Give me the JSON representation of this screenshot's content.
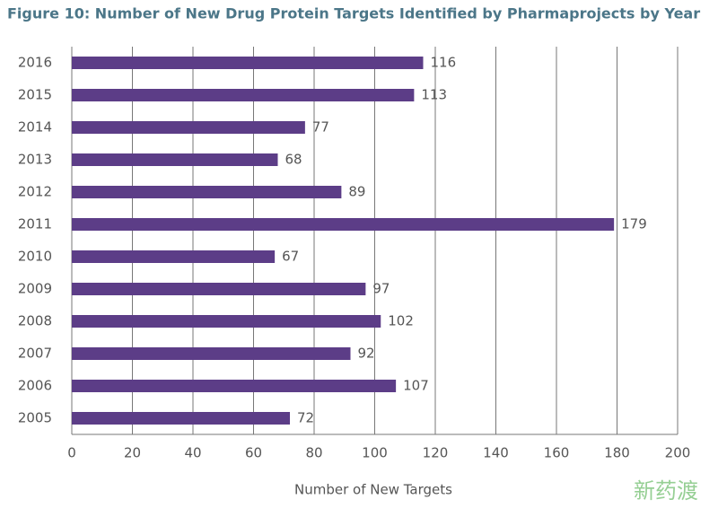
{
  "chart_data": {
    "type": "bar",
    "orientation": "horizontal",
    "title": "Figure 10: Number of New Drug Protein Targets Identified by Pharmaprojects by Year",
    "categories": [
      "2016",
      "2015",
      "2014",
      "2013",
      "2012",
      "2011",
      "2010",
      "2009",
      "2008",
      "2007",
      "2006",
      "2005"
    ],
    "values": [
      116,
      113,
      77,
      68,
      89,
      179,
      67,
      97,
      102,
      92,
      107,
      72
    ],
    "color": "#5c3d87",
    "xlim": [
      0,
      200
    ],
    "xticks": [
      0,
      20,
      40,
      60,
      80,
      100,
      120,
      140,
      160,
      180,
      200
    ],
    "xlabel": "Number of New Targets",
    "grid": true,
    "watermark": "新药渡"
  }
}
